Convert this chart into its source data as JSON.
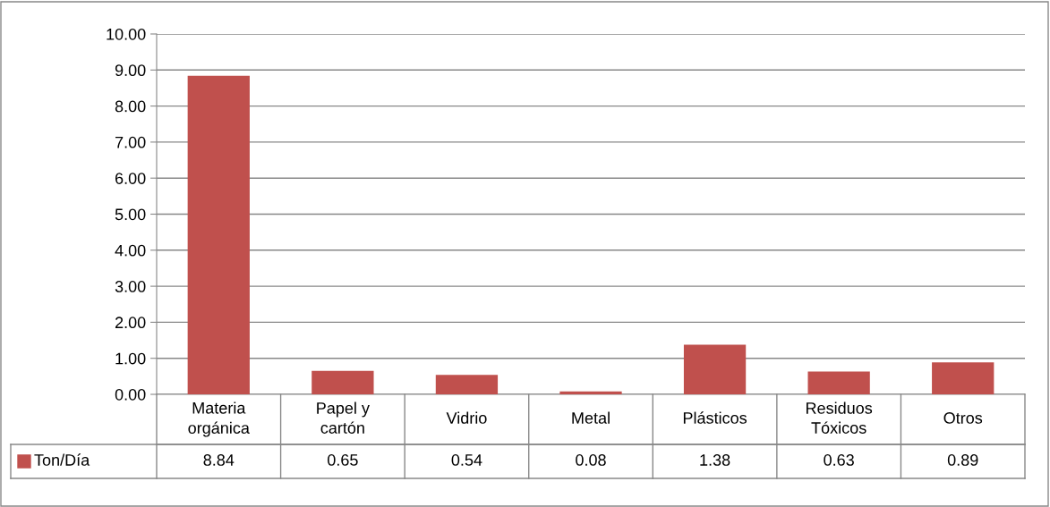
{
  "chart_data": {
    "type": "bar",
    "categories": [
      "Materia\norgánica",
      "Papel y\ncartón",
      "Vidrio",
      "Metal",
      "Plásticos",
      "Residuos\nTóxicos",
      "Otros"
    ],
    "series": [
      {
        "name": "Ton/Día",
        "color": "#c0504d",
        "values": [
          8.84,
          0.65,
          0.54,
          0.08,
          1.38,
          0.63,
          0.89
        ]
      }
    ],
    "ylim": [
      0,
      10
    ],
    "yticks": [
      {
        "value": 0,
        "label": "0.00"
      },
      {
        "value": 1,
        "label": "1.00"
      },
      {
        "value": 2,
        "label": "2.00"
      },
      {
        "value": 3,
        "label": "3.00"
      },
      {
        "value": 4,
        "label": "4.00"
      },
      {
        "value": 5,
        "label": "5.00"
      },
      {
        "value": 6,
        "label": "6.00"
      },
      {
        "value": 7,
        "label": "7.00"
      },
      {
        "value": 8,
        "label": "8.00"
      },
      {
        "value": 9,
        "label": "9.00"
      },
      {
        "value": 10,
        "label": "10.00"
      }
    ],
    "grid": "y",
    "data_labels": true,
    "legend": "bottom left"
  }
}
